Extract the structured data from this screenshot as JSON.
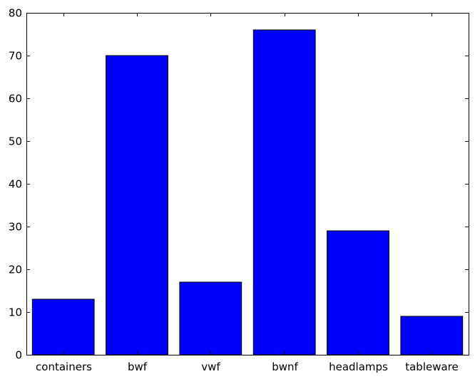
{
  "chart_data": {
    "type": "bar",
    "categories": [
      "containers",
      "bwf",
      "vwf",
      "bwnf",
      "headlamps",
      "tableware"
    ],
    "values": [
      13,
      70,
      17,
      76,
      29,
      9
    ],
    "title": "",
    "xlabel": "",
    "ylabel": "",
    "ylim": [
      0,
      80
    ],
    "yticks": [
      0,
      10,
      20,
      30,
      40,
      50,
      60,
      70,
      80
    ],
    "bar_color": "#0000ff",
    "edge_color": "#000000",
    "grid": false,
    "legend": false
  }
}
